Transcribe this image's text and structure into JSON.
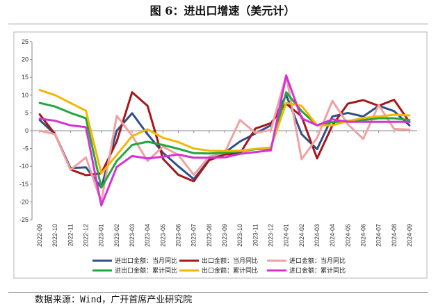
{
  "title": "图 6：进出口增速（美元计）",
  "source": "数据来源：Wind，广开首席产业研究院",
  "chart_data": {
    "type": "line",
    "title": "",
    "xlabel": "",
    "ylabel": "",
    "ylim": [
      -25,
      25
    ],
    "yticks": [
      -25,
      -20,
      -15,
      -10,
      -5,
      0,
      5,
      10,
      15,
      20,
      25
    ],
    "grid": false,
    "legend_position": "bottom",
    "categories": [
      "2022-09",
      "2022-10",
      "2022-11",
      "2022-12",
      "2023-01",
      "2023-02",
      "2023-03",
      "2023-04",
      "2023-05",
      "2023-06",
      "2023-07",
      "2023-08",
      "2023-09",
      "2023-10",
      "2023-11",
      "2023-12",
      "2024-01",
      "2024-02",
      "2024-03",
      "2024-04",
      "2024-05",
      "2024-06",
      "2024-07",
      "2024-08",
      "2024-09"
    ],
    "series": [
      {
        "name": "进出口金额：当月同比",
        "color": "#2e4f8a",
        "values": [
          3.0,
          -1.0,
          -10.5,
          -10.3,
          -16.0,
          0.0,
          4.9,
          -1.0,
          -6.2,
          -10.0,
          -13.6,
          -8.2,
          -6.2,
          -3.0,
          -0.8,
          1.5,
          10.0,
          -1.0,
          -5.2,
          4.0,
          5.0,
          4.0,
          7.0,
          5.5,
          1.5
        ]
      },
      {
        "name": "出口金额：当月同比",
        "color": "#a31818",
        "values": [
          4.6,
          -1.0,
          -10.9,
          -12.5,
          -12.0,
          -3.0,
          10.8,
          7.0,
          -7.9,
          -12.4,
          -14.2,
          -8.3,
          -6.7,
          -6.4,
          0.6,
          2.1,
          7.6,
          4.0,
          -7.8,
          1.5,
          7.6,
          8.6,
          7.0,
          8.7,
          2.4
        ]
      },
      {
        "name": "进口金额：当月同比",
        "color": "#f0a1a1",
        "values": [
          0.0,
          -1.0,
          -11.0,
          -7.5,
          -20.0,
          4.2,
          -1.4,
          -8.5,
          -4.5,
          -6.8,
          -12.4,
          -7.3,
          -6.2,
          3.0,
          -0.6,
          0.2,
          15.5,
          -8.0,
          -2.0,
          8.4,
          1.8,
          -2.3,
          7.2,
          0.5,
          0.3
        ]
      },
      {
        "name": "进出口金额：累计同比",
        "color": "#21a73c",
        "values": [
          7.8,
          6.8,
          5.0,
          3.5,
          -16.0,
          -8.5,
          -4.0,
          -3.1,
          -4.0,
          -5.1,
          -6.3,
          -6.4,
          -6.2,
          -5.8,
          -5.2,
          -5.0,
          10.8,
          5.5,
          1.5,
          2.4,
          2.8,
          3.0,
          3.5,
          3.5,
          3.0
        ]
      },
      {
        "name": "出口金额：累计同比",
        "color": "#f2b705",
        "values": [
          11.4,
          10.0,
          7.8,
          5.6,
          -12.0,
          -6.8,
          -1.5,
          0.4,
          -2.0,
          -3.2,
          -5.0,
          -5.6,
          -5.7,
          -5.6,
          -5.1,
          -4.7,
          7.8,
          7.0,
          1.5,
          1.5,
          2.7,
          3.6,
          4.0,
          4.5,
          4.3
        ]
      },
      {
        "name": "进口金额：累计同比",
        "color": "#d631d6",
        "values": [
          3.4,
          2.8,
          1.5,
          1.0,
          -21.0,
          -10.2,
          -7.1,
          -7.8,
          -7.3,
          -6.7,
          -7.6,
          -7.6,
          -7.5,
          -6.5,
          -6.0,
          -5.5,
          15.5,
          3.5,
          1.5,
          3.2,
          2.5,
          2.5,
          2.5,
          2.5,
          2.5
        ]
      }
    ]
  }
}
